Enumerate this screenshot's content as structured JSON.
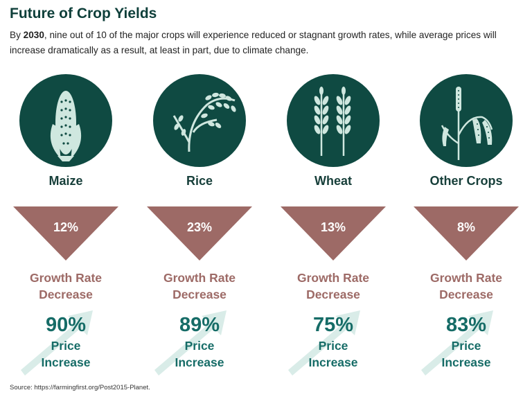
{
  "header": {
    "title": "Future of Crop Yields",
    "intro_prefix": "By ",
    "intro_year": "2030",
    "intro_rest": ", nine out of 10 of the major crops will experience reduced or stagnant growth rates, while average prices will increase dramatically as a result, at least in part, due to climate change."
  },
  "colors": {
    "dark_green": "#0f4a42",
    "mauve": "#9d6a66",
    "teal": "#166c67"
  },
  "crops": [
    {
      "name": "Maize",
      "icon": "maize-icon",
      "growth_decrease": "12%",
      "growth_label_1": "Growth Rate",
      "growth_label_2": "Decrease",
      "price_increase": "90%",
      "price_label_1": "Price",
      "price_label_2": "Increase"
    },
    {
      "name": "Rice",
      "icon": "rice-icon",
      "growth_decrease": "23%",
      "growth_label_1": "Growth Rate",
      "growth_label_2": "Decrease",
      "price_increase": "89%",
      "price_label_1": "Price",
      "price_label_2": "Increase"
    },
    {
      "name": "Wheat",
      "icon": "wheat-icon",
      "growth_decrease": "13%",
      "growth_label_1": "Growth Rate",
      "growth_label_2": "Decrease",
      "price_increase": "75%",
      "price_label_1": "Price",
      "price_label_2": "Increase"
    },
    {
      "name": "Other Crops",
      "icon": "sorghum-icon",
      "growth_decrease": "8%",
      "growth_label_1": "Growth Rate",
      "growth_label_2": "Decrease",
      "price_increase": "83%",
      "price_label_1": "Price",
      "price_label_2": "Increase"
    }
  ],
  "footer": {
    "source": "Source: https://farmingfirst.org/Post2015-Planet."
  }
}
